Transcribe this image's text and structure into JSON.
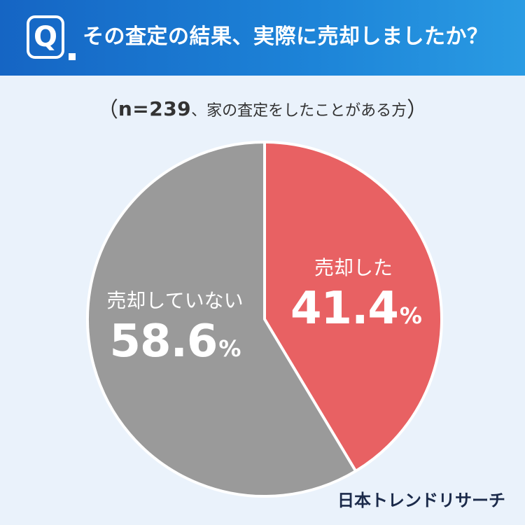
{
  "header": {
    "badge": "Q",
    "title": "その査定の結果、実際に売却しましたか？"
  },
  "subtitle": {
    "open": "（",
    "n": "n=239",
    "text": "、家の査定をしたことがある方",
    "close": "）"
  },
  "colors": {
    "header_start": "#1565c4",
    "header_end": "#2a9be3",
    "background": "#eaf2fb",
    "sold": "#e86163",
    "not_sold": "#9a9a9a"
  },
  "chart_data": {
    "type": "pie",
    "title": "その査定の結果、実際に売却しましたか？",
    "slices": [
      {
        "label": "売却した",
        "value": 41.4,
        "display": "41.4",
        "unit": "%",
        "color": "#e86163"
      },
      {
        "label": "売却していない",
        "value": 58.6,
        "display": "58.6",
        "unit": "%",
        "color": "#9a9a9a"
      }
    ],
    "start_angle": "12 o'clock",
    "direction": "clockwise"
  },
  "logo": {
    "text": "日本トレンドリサーチ"
  }
}
